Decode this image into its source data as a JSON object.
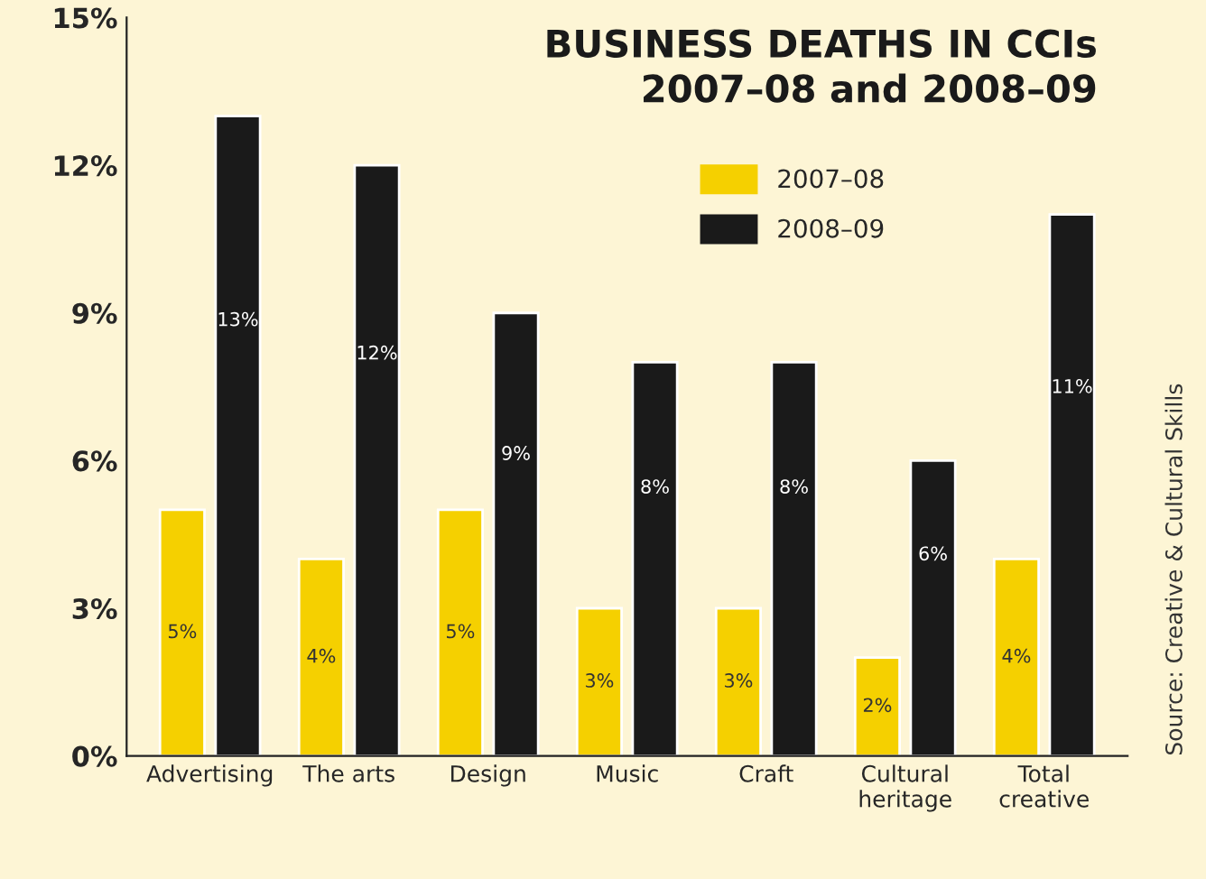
{
  "chart_data": {
    "type": "bar",
    "title": "BUSINESS DEATHS IN CCIs\n2007–08 and 2008–09",
    "categories": [
      "Advertising",
      "The arts",
      "Design",
      "Music",
      "Craft",
      "Cultural\nheritage",
      "Total\ncreative"
    ],
    "series": [
      {
        "name": "2007–08",
        "color": "#f5d000",
        "values": [
          5,
          4,
          5,
          3,
          3,
          2,
          4
        ],
        "value_labels": [
          "5%",
          "4%",
          "5%",
          "3%",
          "3%",
          "2%",
          "4%"
        ]
      },
      {
        "name": "2008–09",
        "color": "#1a1a1a",
        "values": [
          13,
          12,
          9,
          8,
          8,
          6,
          11
        ],
        "value_labels": [
          "13%",
          "12%",
          "9%",
          "8%",
          "8%",
          "6%",
          "11%"
        ]
      }
    ],
    "ylim": [
      0,
      15
    ],
    "yticks": [
      {
        "value": 0,
        "label": "0%"
      },
      {
        "value": 3,
        "label": "3%"
      },
      {
        "value": 6,
        "label": "6%"
      },
      {
        "value": 9,
        "label": "9%"
      },
      {
        "value": 12,
        "label": "12%"
      },
      {
        "value": 15,
        "label": "15%"
      }
    ],
    "grid": false,
    "legend": "top right",
    "annotations": [
      "Source: Creative & Cultural Skills"
    ]
  }
}
